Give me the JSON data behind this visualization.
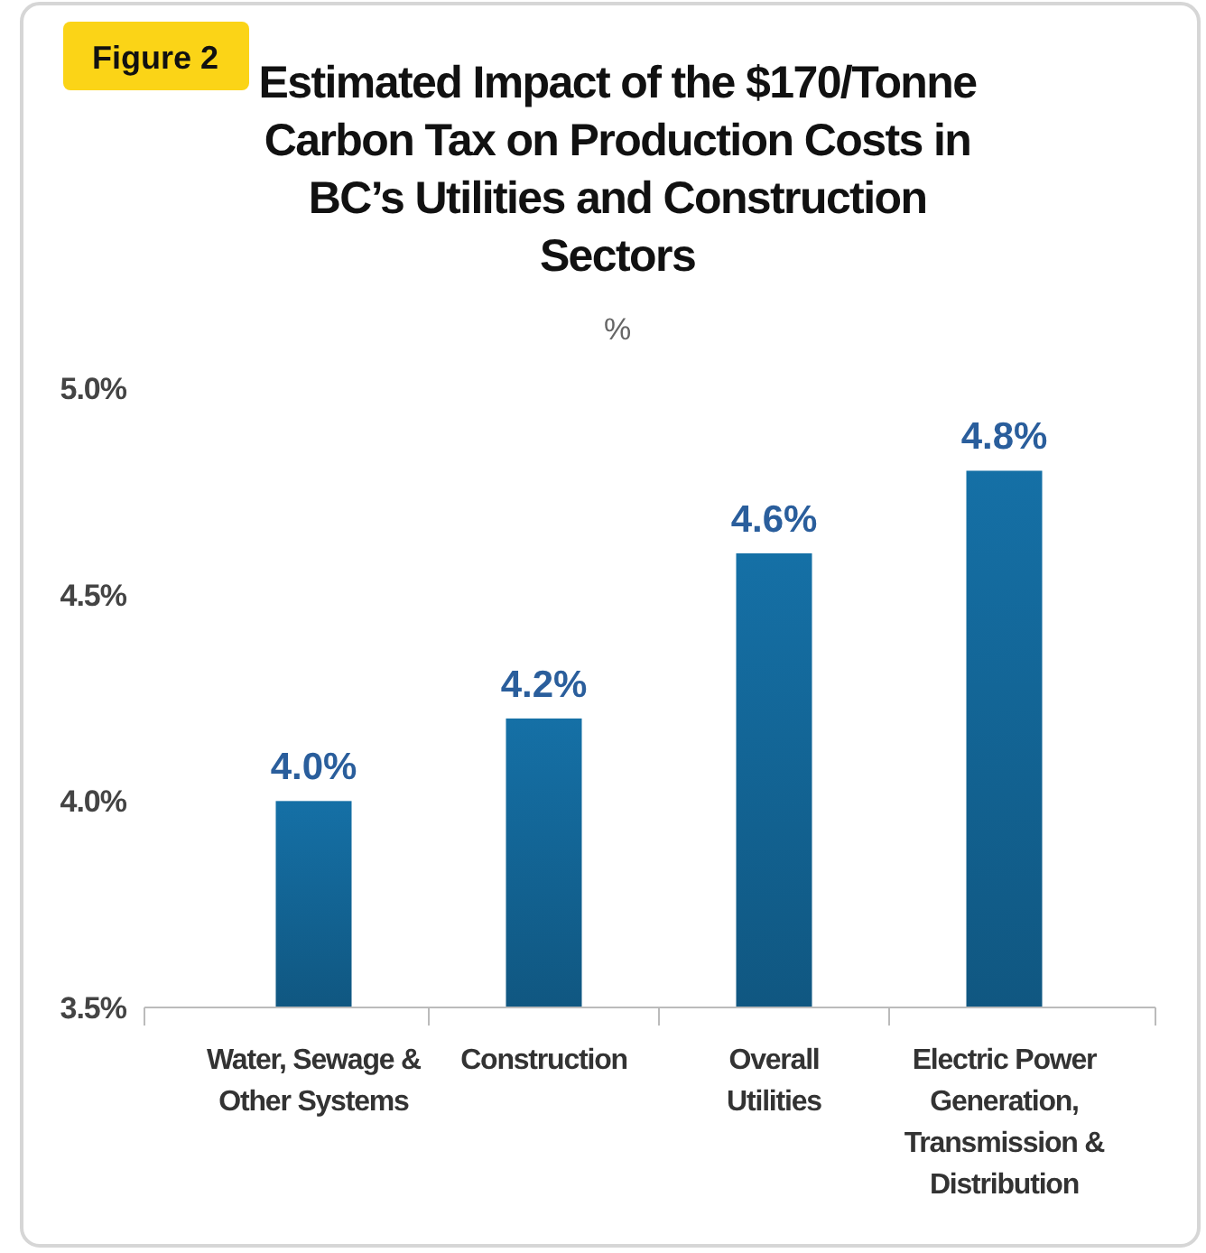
{
  "chart_data": {
    "type": "bar",
    "title": "Estimated Impact of the $170/Tonne Carbon Tax on Production Costs in BC’s Utilities and Construction Sectors",
    "subtitle": "%",
    "annotations": [
      "Figure 2"
    ],
    "categories": [
      "Water, Sewage & Other Systems",
      "Construction",
      "Overall Utilities",
      "Electric Power Generation, Transmission & Distribution"
    ],
    "values": [
      4.0,
      4.2,
      4.6,
      4.8
    ],
    "color": "#1570a6",
    "value_labels": [
      "4.0%",
      "4.2%",
      "4.6%",
      "4.8%"
    ],
    "ylim": [
      3.5,
      5.0
    ],
    "yticks": [
      {
        "value": 3.5,
        "label": "3.5%"
      },
      {
        "value": 4.0,
        "label": "4.0%"
      },
      {
        "value": 4.5,
        "label": "4.5%"
      },
      {
        "value": 5.0,
        "label": "5.0%"
      }
    ],
    "grid": false
  }
}
